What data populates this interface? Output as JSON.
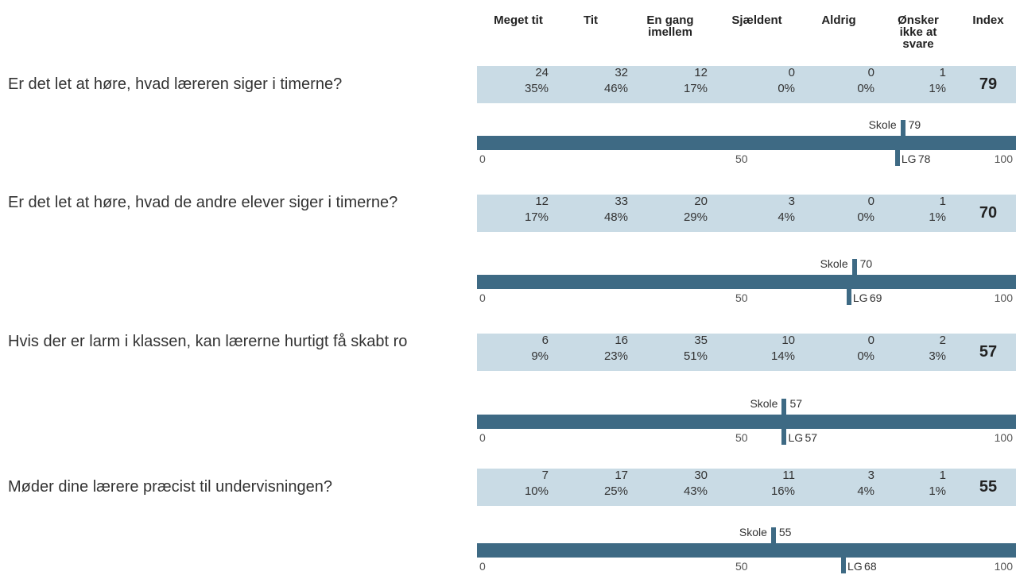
{
  "header": {
    "columns": [
      "Meget tit",
      "Tit",
      "En gang imellem",
      "Sjældent",
      "Aldrig",
      "Ønsker ikke at svare",
      "Index"
    ]
  },
  "scale": {
    "min": 0,
    "max": 100,
    "ticks": [
      0,
      50,
      100
    ]
  },
  "labels": {
    "school": "Skole",
    "lg": "LG"
  },
  "questions": [
    {
      "text": "Er det let at høre, hvad læreren siger i timerne?",
      "counts": [
        24,
        32,
        12,
        0,
        0,
        1
      ],
      "percents": [
        "35%",
        "46%",
        "17%",
        "0%",
        "0%",
        "1%"
      ],
      "index": 79,
      "school": 79,
      "lg": 78
    },
    {
      "text": "Er det let at høre, hvad de andre elever siger i timerne?",
      "counts": [
        12,
        33,
        20,
        3,
        0,
        1
      ],
      "percents": [
        "17%",
        "48%",
        "29%",
        "4%",
        "0%",
        "1%"
      ],
      "index": 70,
      "school": 70,
      "lg": 69
    },
    {
      "text": "Hvis der er larm i klassen, kan lærerne hurtigt få skabt ro",
      "counts": [
        6,
        16,
        35,
        10,
        0,
        2
      ],
      "percents": [
        "9%",
        "23%",
        "51%",
        "14%",
        "0%",
        "3%"
      ],
      "index": 57,
      "school": 57,
      "lg": 57
    },
    {
      "text": "Møder dine lærere præcist til undervisningen?",
      "counts": [
        7,
        17,
        30,
        11,
        3,
        1
      ],
      "percents": [
        "10%",
        "25%",
        "43%",
        "16%",
        "4%",
        "1%"
      ],
      "index": 55,
      "school": 55,
      "lg": 68
    }
  ]
}
